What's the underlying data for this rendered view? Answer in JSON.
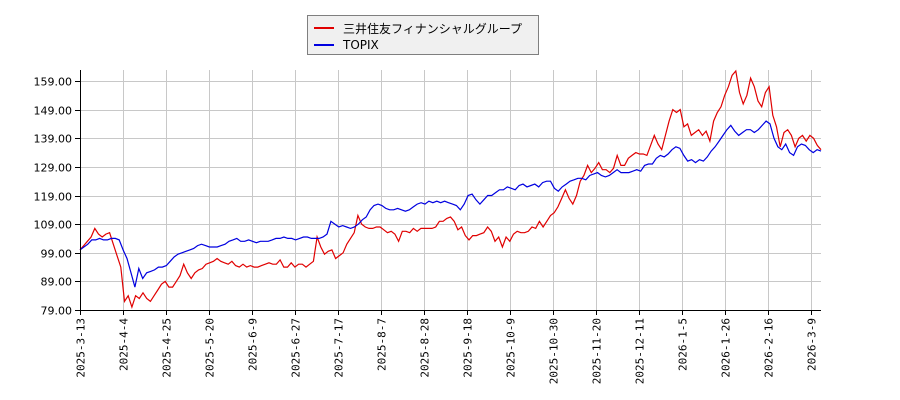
{
  "chart_data": {
    "type": "line",
    "title": "",
    "xlabel": "",
    "ylabel": "",
    "ylim": [
      79,
      163
    ],
    "grid": true,
    "legend_position": "top-center",
    "y_ticks": [
      "79.00",
      "89.00",
      "99.00",
      "109.00",
      "119.00",
      "129.00",
      "139.00",
      "149.00",
      "159.00"
    ],
    "x_ticks": [
      "2025-3-13",
      "2025-4-4",
      "2025-4-25",
      "2025-5-20",
      "2025-6-9",
      "2025-6-27",
      "2025-7-17",
      "2025-8-7",
      "2025-8-28",
      "2025-9-18",
      "2025-10-9",
      "2025-10-30",
      "2025-11-20",
      "2025-12-11",
      "2026-1-5",
      "2026-1-26",
      "2026-2-16",
      "2026-3-9"
    ],
    "x_tick_index_step": 15,
    "series": [
      {
        "name": "三井住友フィナンシャルグループ",
        "color": "#e00000",
        "values": [
          100,
          101.5,
          103,
          104.5,
          107.5,
          105.5,
          104.5,
          105.5,
          106,
          102,
          98,
          94,
          82,
          84,
          80,
          84,
          83,
          85,
          83,
          82,
          84,
          86,
          88,
          89,
          87,
          87,
          89,
          91,
          95,
          92,
          90,
          92,
          93,
          93.5,
          95,
          95.5,
          96,
          97,
          96,
          95.5,
          95,
          96,
          94.5,
          94,
          95,
          94,
          94.5,
          94,
          94,
          94.5,
          95,
          95.5,
          95,
          95,
          96.5,
          94,
          94,
          95.5,
          94,
          95,
          95,
          94,
          95,
          96,
          104.5,
          101,
          98.5,
          99.5,
          100,
          97,
          98,
          99,
          102,
          104,
          106,
          112,
          109,
          108,
          107.5,
          107.5,
          108,
          108,
          107,
          106,
          106.5,
          105.5,
          103,
          106.5,
          106.5,
          106,
          107.5,
          106.5,
          107.5,
          107.5,
          107.5,
          107.5,
          108,
          110,
          110,
          111,
          111.5,
          110,
          107,
          108,
          105,
          103.5,
          105,
          105,
          105.5,
          106,
          108,
          106.5,
          103,
          104.5,
          101,
          104.5,
          103,
          105.5,
          106.5,
          106,
          106,
          106.5,
          108,
          107.5,
          110,
          108,
          110,
          112,
          113,
          115,
          118,
          121,
          118,
          116,
          119,
          124,
          126,
          129.5,
          127,
          128.5,
          130.5,
          128,
          128,
          127,
          128.5,
          133,
          129.5,
          129.5,
          132,
          133,
          134,
          133.5,
          133.5,
          133,
          136.5,
          140,
          137,
          135,
          140,
          145,
          149,
          148,
          149,
          143,
          144,
          140,
          141,
          142,
          140,
          141.5,
          138,
          145,
          148,
          150,
          154,
          157,
          161,
          162.5,
          155,
          151,
          154,
          160,
          157,
          152,
          150,
          155,
          157,
          147,
          143,
          136,
          141,
          142,
          140,
          136,
          139,
          140,
          138,
          140,
          139,
          136.5,
          135
        ]
      },
      {
        "name": "TOPIX",
        "color": "#0000e0",
        "values": [
          100,
          101,
          102,
          103.5,
          103.5,
          104,
          103.5,
          103.5,
          104,
          104,
          103.5,
          100,
          97,
          92,
          87,
          93.5,
          90,
          92,
          92.5,
          93,
          94,
          94,
          94.5,
          96,
          97.5,
          98.5,
          99,
          99.5,
          100,
          100.5,
          101.5,
          102,
          101.5,
          101,
          101,
          101,
          101.5,
          102,
          103,
          103.5,
          104,
          103,
          103,
          103.5,
          103,
          102.5,
          103,
          103,
          103,
          103.5,
          104,
          104,
          104.5,
          104,
          104,
          103.5,
          104,
          104.5,
          104.5,
          104,
          104,
          104,
          104.5,
          105.5,
          110,
          109,
          108,
          108.5,
          108,
          107.5,
          108,
          109,
          110.5,
          111.5,
          114,
          115.5,
          116,
          115.5,
          114.5,
          114,
          114,
          114.5,
          114,
          113.5,
          114,
          115,
          116,
          116.5,
          116,
          117,
          116.5,
          117,
          116.5,
          117,
          116.5,
          116,
          115.5,
          114,
          116,
          119,
          119.5,
          117.5,
          116,
          117.5,
          119,
          119,
          120,
          121,
          121,
          122,
          121.5,
          121,
          122.5,
          123,
          122,
          122.5,
          123,
          122,
          123.5,
          124,
          124,
          121.5,
          120.5,
          122,
          123,
          124,
          124.5,
          125,
          125,
          124.5,
          126,
          126.5,
          127,
          126,
          125.5,
          126,
          127,
          128,
          127,
          127,
          127,
          127.5,
          128,
          127.5,
          129.5,
          130,
          130,
          132,
          133,
          132.5,
          133.5,
          135,
          136,
          135.5,
          133,
          131,
          131.5,
          130.5,
          131.5,
          131,
          132.5,
          134.5,
          136,
          138,
          140,
          142,
          143.5,
          141.5,
          140,
          141,
          142,
          142,
          141,
          142,
          143.5,
          145,
          144,
          139,
          136,
          135,
          137,
          134,
          133,
          136,
          137,
          136.5,
          135,
          134,
          135,
          134.5
        ]
      }
    ]
  },
  "legend": {
    "items": [
      {
        "label": "三井住友フィナンシャルグループ",
        "color": "#e00000"
      },
      {
        "label": "TOPIX",
        "color": "#0000e0"
      }
    ]
  }
}
